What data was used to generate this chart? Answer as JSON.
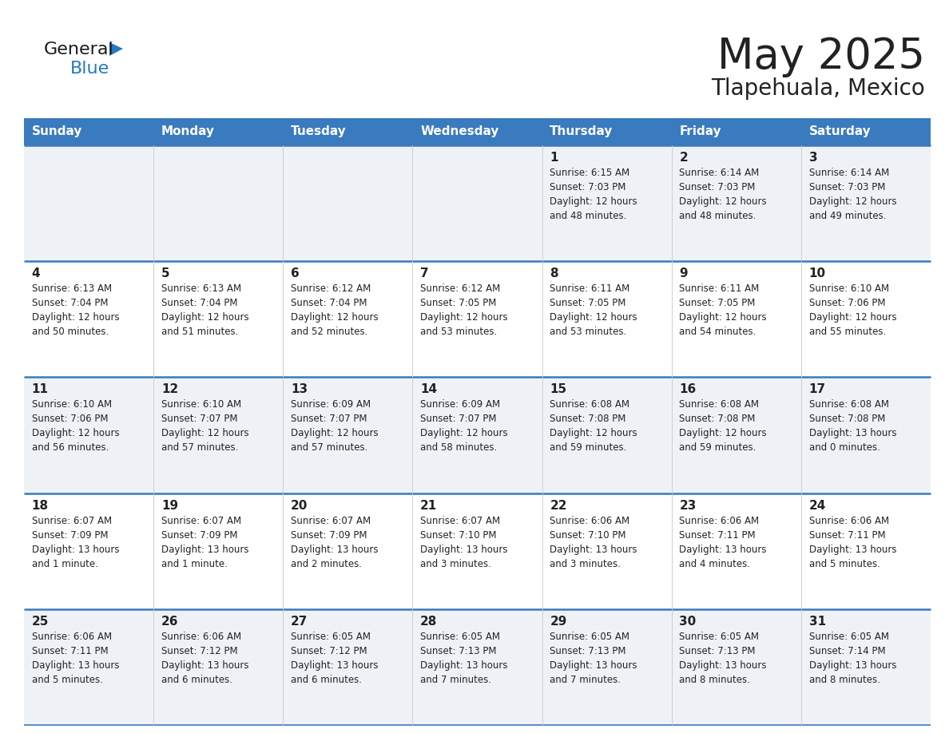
{
  "title": "May 2025",
  "subtitle": "Tlapehuala, Mexico",
  "days_of_week": [
    "Sunday",
    "Monday",
    "Tuesday",
    "Wednesday",
    "Thursday",
    "Friday",
    "Saturday"
  ],
  "header_bg": "#3a7abf",
  "header_text": "#ffffff",
  "row_bg_light": "#eef2f7",
  "row_bg_white": "#ffffff",
  "cell_border_color": "#3a7abf",
  "day_number_color": "#222222",
  "info_text_color": "#222222",
  "logo_general_color": "#1a1a1a",
  "logo_blue_color": "#2878be",
  "calendar_data": [
    [
      null,
      null,
      null,
      null,
      {
        "day": 1,
        "sunrise": "6:15 AM",
        "sunset": "7:03 PM",
        "daylight_hrs": 12,
        "daylight_min": 48
      },
      {
        "day": 2,
        "sunrise": "6:14 AM",
        "sunset": "7:03 PM",
        "daylight_hrs": 12,
        "daylight_min": 48
      },
      {
        "day": 3,
        "sunrise": "6:14 AM",
        "sunset": "7:03 PM",
        "daylight_hrs": 12,
        "daylight_min": 49
      }
    ],
    [
      {
        "day": 4,
        "sunrise": "6:13 AM",
        "sunset": "7:04 PM",
        "daylight_hrs": 12,
        "daylight_min": 50
      },
      {
        "day": 5,
        "sunrise": "6:13 AM",
        "sunset": "7:04 PM",
        "daylight_hrs": 12,
        "daylight_min": 51
      },
      {
        "day": 6,
        "sunrise": "6:12 AM",
        "sunset": "7:04 PM",
        "daylight_hrs": 12,
        "daylight_min": 52
      },
      {
        "day": 7,
        "sunrise": "6:12 AM",
        "sunset": "7:05 PM",
        "daylight_hrs": 12,
        "daylight_min": 53
      },
      {
        "day": 8,
        "sunrise": "6:11 AM",
        "sunset": "7:05 PM",
        "daylight_hrs": 12,
        "daylight_min": 53
      },
      {
        "day": 9,
        "sunrise": "6:11 AM",
        "sunset": "7:05 PM",
        "daylight_hrs": 12,
        "daylight_min": 54
      },
      {
        "day": 10,
        "sunrise": "6:10 AM",
        "sunset": "7:06 PM",
        "daylight_hrs": 12,
        "daylight_min": 55
      }
    ],
    [
      {
        "day": 11,
        "sunrise": "6:10 AM",
        "sunset": "7:06 PM",
        "daylight_hrs": 12,
        "daylight_min": 56
      },
      {
        "day": 12,
        "sunrise": "6:10 AM",
        "sunset": "7:07 PM",
        "daylight_hrs": 12,
        "daylight_min": 57
      },
      {
        "day": 13,
        "sunrise": "6:09 AM",
        "sunset": "7:07 PM",
        "daylight_hrs": 12,
        "daylight_min": 57
      },
      {
        "day": 14,
        "sunrise": "6:09 AM",
        "sunset": "7:07 PM",
        "daylight_hrs": 12,
        "daylight_min": 58
      },
      {
        "day": 15,
        "sunrise": "6:08 AM",
        "sunset": "7:08 PM",
        "daylight_hrs": 12,
        "daylight_min": 59
      },
      {
        "day": 16,
        "sunrise": "6:08 AM",
        "sunset": "7:08 PM",
        "daylight_hrs": 12,
        "daylight_min": 59
      },
      {
        "day": 17,
        "sunrise": "6:08 AM",
        "sunset": "7:08 PM",
        "daylight_hrs": 13,
        "daylight_min": 0
      }
    ],
    [
      {
        "day": 18,
        "sunrise": "6:07 AM",
        "sunset": "7:09 PM",
        "daylight_hrs": 13,
        "daylight_min": 1
      },
      {
        "day": 19,
        "sunrise": "6:07 AM",
        "sunset": "7:09 PM",
        "daylight_hrs": 13,
        "daylight_min": 1
      },
      {
        "day": 20,
        "sunrise": "6:07 AM",
        "sunset": "7:09 PM",
        "daylight_hrs": 13,
        "daylight_min": 2
      },
      {
        "day": 21,
        "sunrise": "6:07 AM",
        "sunset": "7:10 PM",
        "daylight_hrs": 13,
        "daylight_min": 3
      },
      {
        "day": 22,
        "sunrise": "6:06 AM",
        "sunset": "7:10 PM",
        "daylight_hrs": 13,
        "daylight_min": 3
      },
      {
        "day": 23,
        "sunrise": "6:06 AM",
        "sunset": "7:11 PM",
        "daylight_hrs": 13,
        "daylight_min": 4
      },
      {
        "day": 24,
        "sunrise": "6:06 AM",
        "sunset": "7:11 PM",
        "daylight_hrs": 13,
        "daylight_min": 5
      }
    ],
    [
      {
        "day": 25,
        "sunrise": "6:06 AM",
        "sunset": "7:11 PM",
        "daylight_hrs": 13,
        "daylight_min": 5
      },
      {
        "day": 26,
        "sunrise": "6:06 AM",
        "sunset": "7:12 PM",
        "daylight_hrs": 13,
        "daylight_min": 6
      },
      {
        "day": 27,
        "sunrise": "6:05 AM",
        "sunset": "7:12 PM",
        "daylight_hrs": 13,
        "daylight_min": 6
      },
      {
        "day": 28,
        "sunrise": "6:05 AM",
        "sunset": "7:13 PM",
        "daylight_hrs": 13,
        "daylight_min": 7
      },
      {
        "day": 29,
        "sunrise": "6:05 AM",
        "sunset": "7:13 PM",
        "daylight_hrs": 13,
        "daylight_min": 7
      },
      {
        "day": 30,
        "sunrise": "6:05 AM",
        "sunset": "7:13 PM",
        "daylight_hrs": 13,
        "daylight_min": 8
      },
      {
        "day": 31,
        "sunrise": "6:05 AM",
        "sunset": "7:14 PM",
        "daylight_hrs": 13,
        "daylight_min": 8
      }
    ]
  ]
}
